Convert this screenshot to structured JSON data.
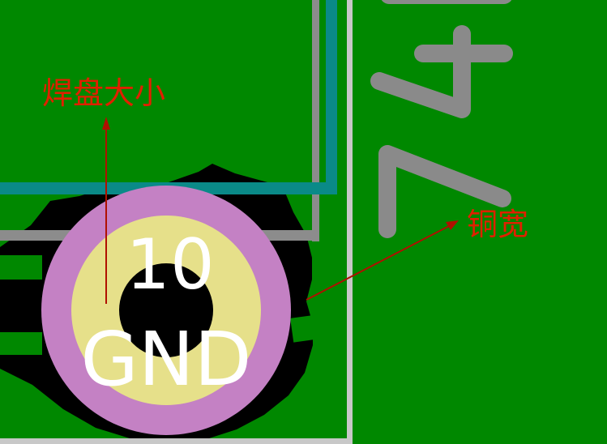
{
  "pad": {
    "number": "10",
    "net": "GND"
  },
  "annotations": {
    "pad_size": "焊盘大小",
    "copper_width": "铜宽"
  },
  "colors": {
    "board": "#008800",
    "trace_teal": "#0a8a88",
    "outline_gray": "#8c8c8c",
    "silk_gray": "#8a8a8a",
    "border_light": "#c8c8c8",
    "copper_keepout": "#000000",
    "pad_ring": "#c481c4",
    "pad_copper": "#e6e08a",
    "drill": "#000000",
    "annotation": "#e02000"
  }
}
